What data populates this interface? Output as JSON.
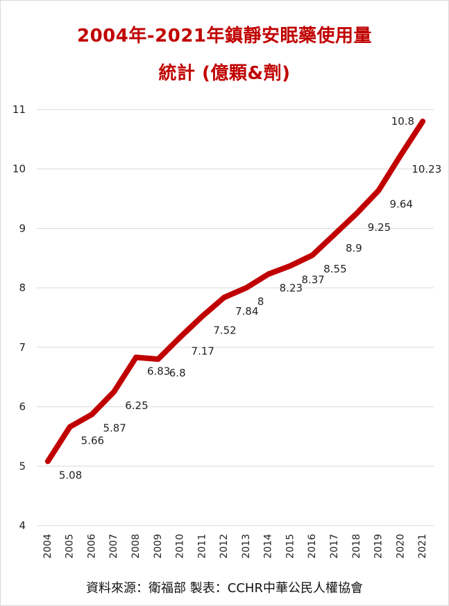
{
  "chart_data": {
    "type": "line",
    "title_line1": "2004年-2021年鎮靜安眠藥使用量",
    "title_line2": "統計 (億顆&劑)",
    "xlabel": "",
    "ylabel": "",
    "ylim": [
      4,
      11
    ],
    "yticks": [
      "4",
      "5",
      "6",
      "7",
      "8",
      "9",
      "10",
      "11"
    ],
    "grid": true,
    "categories": [
      "2004",
      "2005",
      "2006",
      "2007",
      "2008",
      "2009",
      "2010",
      "2011",
      "2012",
      "2013",
      "2014",
      "2015",
      "2016",
      "2017",
      "2018",
      "2019",
      "2020",
      "2021"
    ],
    "series": [
      {
        "values": [
          5.08,
          5.66,
          5.87,
          6.25,
          6.83,
          6.8,
          7.17,
          7.52,
          7.84,
          8,
          8.23,
          8.37,
          8.55,
          8.9,
          9.25,
          9.64,
          10.23,
          10.8
        ],
        "labels": [
          "5.08",
          "5.66",
          "5.87",
          "6.25",
          "6.83",
          "6.8",
          "7.17",
          "7.52",
          "7.84",
          "8",
          "8.23",
          "8.37",
          "8.55",
          "8.9",
          "9.25",
          "9.64",
          "10.23",
          "10.8"
        ],
        "color": "#c00000"
      }
    ]
  },
  "footer": {
    "source": "資料來源：衛福部  製表：CCHR中華公民人權協會"
  }
}
